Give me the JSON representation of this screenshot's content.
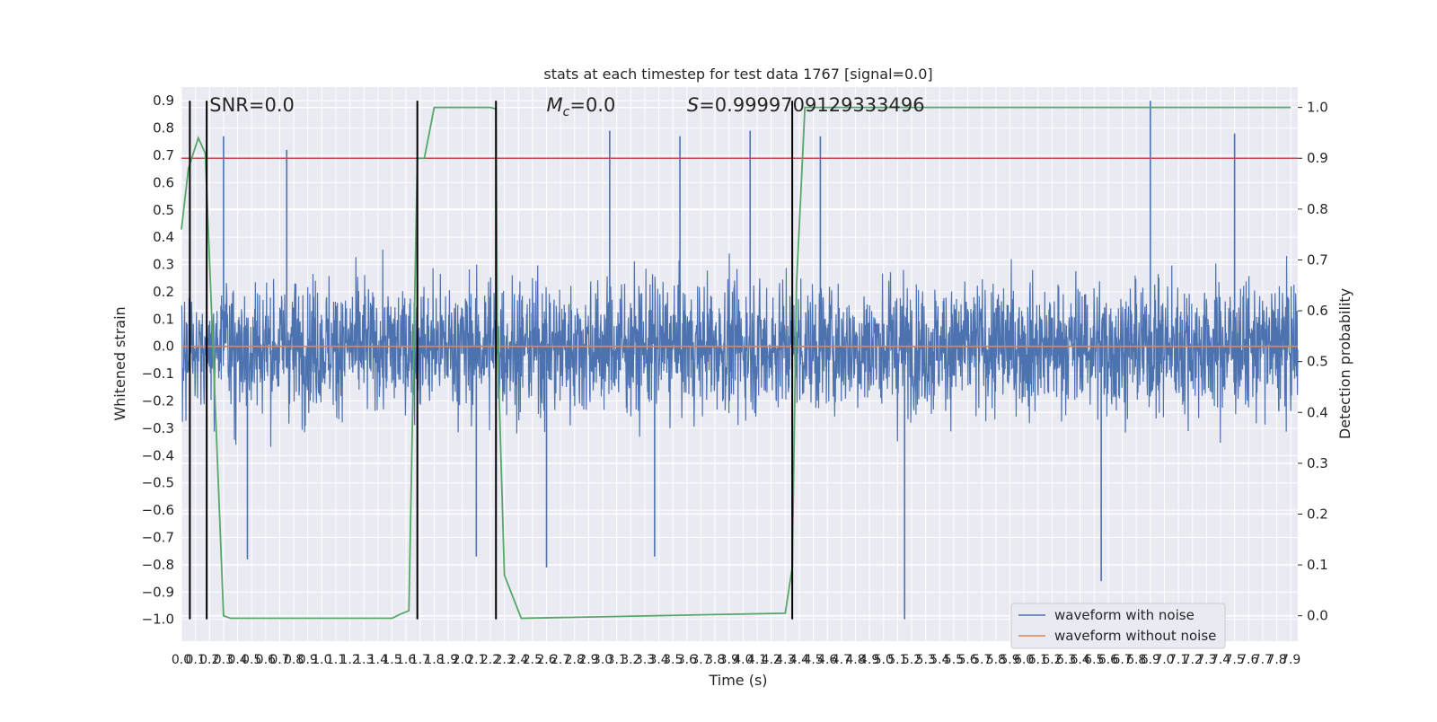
{
  "chart_data": {
    "type": "line",
    "title": "stats at each timestep for test data 1767 [signal=0.0]",
    "xlabel": "Time (s)",
    "ylabel": "Whitened strain",
    "ylabel_right": "Detection probability",
    "xlim": [
      0.0,
      7.95
    ],
    "ylim": [
      -1.08,
      0.95
    ],
    "ylim_right": [
      -0.05,
      1.04
    ],
    "grid": true,
    "legend_position": "lower right",
    "x_ticks": [
      "0.0",
      "0.1",
      "0.2",
      "0.3",
      "0.4",
      "0.5",
      "0.6",
      "0.7",
      "0.8",
      "0.9",
      "1.0",
      "1.1",
      "1.2",
      "1.3",
      "1.4",
      "1.5",
      "1.6",
      "1.7",
      "1.8",
      "1.9",
      "2.0",
      "2.1",
      "2.2",
      "2.3",
      "2.4",
      "2.5",
      "2.6",
      "2.7",
      "2.8",
      "2.9",
      "3.0",
      "3.1",
      "3.2",
      "3.3",
      "3.4",
      "3.5",
      "3.6",
      "3.7",
      "3.8",
      "3.9",
      "4.0",
      "4.1",
      "4.2",
      "4.3",
      "4.4",
      "4.5",
      "4.6",
      "4.7",
      "4.8",
      "4.9",
      "5.0",
      "5.1",
      "5.2",
      "5.3",
      "5.4",
      "5.5",
      "5.6",
      "5.7",
      "5.8",
      "5.9",
      "6.0",
      "6.1",
      "6.2",
      "6.3",
      "6.4",
      "6.5",
      "6.6",
      "6.7",
      "6.8",
      "6.9",
      "7.0",
      "7.1",
      "7.2",
      "7.3",
      "7.4",
      "7.5",
      "7.6",
      "7.7",
      "7.8",
      "7.9"
    ],
    "y_ticks_left": [
      "0.9",
      "0.8",
      "0.7",
      "0.6",
      "0.5",
      "0.4",
      "0.3",
      "0.2",
      "0.1",
      "0.0",
      "−0.1",
      "−0.2",
      "−0.3",
      "−0.4",
      "−0.5",
      "−0.6",
      "−0.7",
      "−0.8",
      "−0.9",
      "−1.0"
    ],
    "y_ticks_right": [
      "1.0",
      "0.9",
      "0.8",
      "0.7",
      "0.6",
      "0.5",
      "0.4",
      "0.3",
      "0.2",
      "0.1",
      "0.0"
    ],
    "threshold_right": 0.9,
    "vertical_lines_x": [
      0.06,
      0.18,
      1.68,
      2.24,
      4.35
    ],
    "series": [
      {
        "name": "waveform with noise",
        "color": "#4c72b0",
        "kind": "noise",
        "envelope": 0.45
      },
      {
        "name": "waveform without noise",
        "color": "#dd8452",
        "x": [
          0.0,
          7.95
        ],
        "y": [
          0.0,
          0.0
        ]
      },
      {
        "axis": "right",
        "color": "#55a868",
        "x": [
          0.0,
          0.05,
          0.12,
          0.17,
          0.3,
          0.35,
          1.5,
          1.55,
          1.62,
          1.68,
          1.73,
          1.8,
          2.2,
          2.24,
          2.25,
          2.3,
          2.42,
          4.3,
          4.35,
          4.38,
          4.44,
          7.9
        ],
        "y": [
          0.76,
          0.88,
          0.94,
          0.91,
          0.0,
          -0.005,
          -0.005,
          0.002,
          0.01,
          0.9,
          0.9,
          1.0,
          1.0,
          0.997,
          0.55,
          0.08,
          -0.005,
          0.005,
          0.095,
          0.65,
          1.0,
          1.0
        ]
      }
    ],
    "annotations": [
      {
        "text": "SNR=0.0",
        "x": 0.2
      },
      {
        "text_prefix": "M",
        "text_sub": "c",
        "text_suffix": "=0.0",
        "x": 2.6
      },
      {
        "text_prefix": "S",
        "text_suffix": "=0.9999709129333496",
        "x": 3.6
      }
    ],
    "spike_highlights": [
      {
        "x": 0.3,
        "y": 0.77
      },
      {
        "x": 0.75,
        "y": 0.72
      },
      {
        "x": 3.05,
        "y": 0.79
      },
      {
        "x": 3.55,
        "y": 0.77
      },
      {
        "x": 4.05,
        "y": 0.79
      },
      {
        "x": 4.55,
        "y": 0.77
      },
      {
        "x": 6.9,
        "y": 0.9
      },
      {
        "x": 7.5,
        "y": 0.78
      },
      {
        "x": 5.15,
        "y": -1.0
      },
      {
        "x": 6.55,
        "y": -0.86
      },
      {
        "x": 0.47,
        "y": -0.78
      },
      {
        "x": 2.6,
        "y": -0.81
      },
      {
        "x": 3.37,
        "y": -0.77
      },
      {
        "x": 2.1,
        "y": -0.77
      }
    ]
  }
}
